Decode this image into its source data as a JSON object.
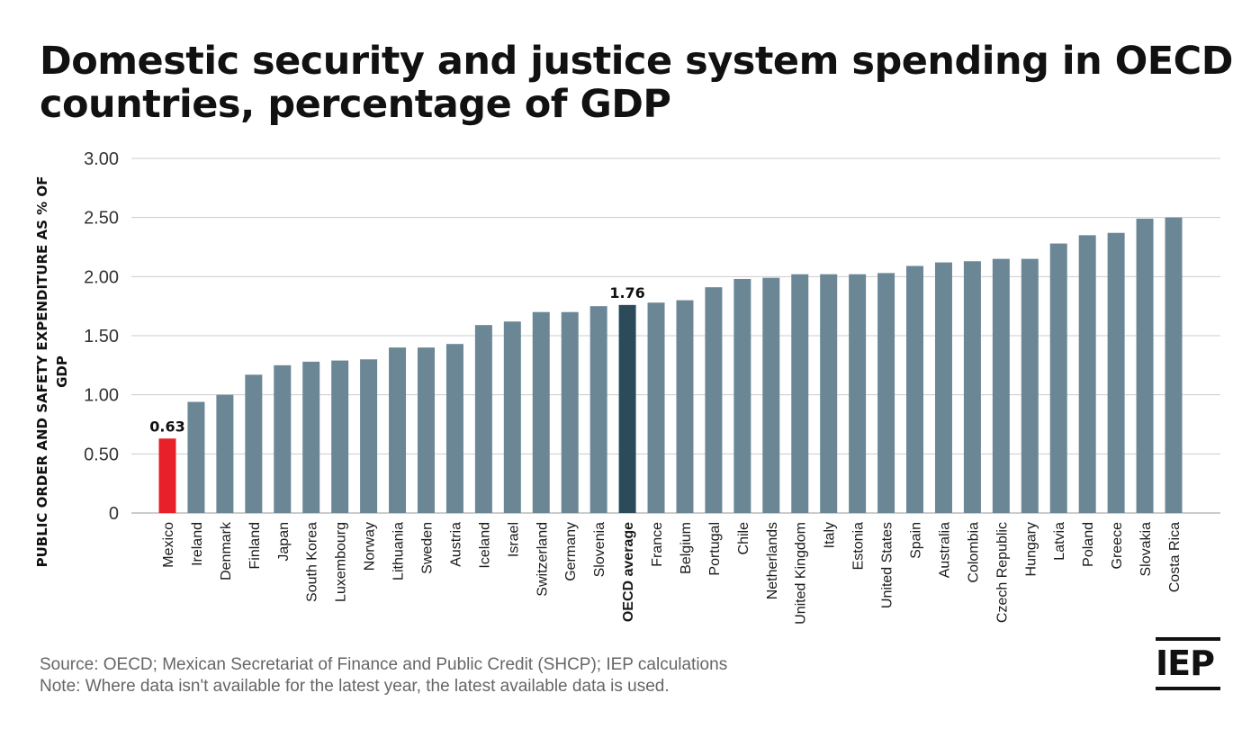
{
  "title": "Domestic security and justice system spending in OECD countries, percentage of GDP",
  "footer": {
    "source": "Source: OECD; Mexican Secretariat of Finance and Public Credit (SHCP); IEP calculations",
    "note": "Note: Where data isn't available for the latest year, the latest available data is used."
  },
  "logo": {
    "text": "IEP"
  },
  "colors": {
    "default_bar": "#6b8796",
    "highlight_bar": "#e8202a",
    "average_bar": "#2c4b5a",
    "grid": "#cccccc",
    "text": "#1a1a1a"
  },
  "chart_data": {
    "type": "bar",
    "ylabel": "PUBLIC ORDER AND SAFETY EXPENDITURE AS % OF GDP",
    "xlabel": "",
    "ylim": [
      0,
      3
    ],
    "yticks": [
      "0",
      "0.50",
      "1.00",
      "1.50",
      "2.00",
      "2.50",
      "3.00"
    ],
    "grid": true,
    "categories": [
      "Mexico",
      "Ireland",
      "Denmark",
      "Finland",
      "Japan",
      "South Korea",
      "Luxembourg",
      "Norway",
      "Lithuania",
      "Sweden",
      "Austria",
      "Iceland",
      "Israel",
      "Switzerland",
      "Germany",
      "Slovenia",
      "OECD average",
      "France",
      "Belgium",
      "Portugal",
      "Chile",
      "Netherlands",
      "United Kingdom",
      "Italy",
      "Estonia",
      "United States",
      "Spain",
      "Australia",
      "Colombia",
      "Czech Republic",
      "Hungary",
      "Latvia",
      "Poland",
      "Greece",
      "Slovakia",
      "Costa Rica"
    ],
    "values": [
      0.63,
      0.94,
      1.0,
      1.17,
      1.25,
      1.28,
      1.29,
      1.3,
      1.4,
      1.4,
      1.43,
      1.59,
      1.62,
      1.7,
      1.7,
      1.75,
      1.76,
      1.78,
      1.8,
      1.91,
      1.98,
      1.99,
      2.02,
      2.02,
      2.02,
      2.03,
      2.09,
      2.12,
      2.13,
      2.15,
      2.15,
      2.28,
      2.35,
      2.37,
      2.49,
      2.5
    ],
    "highlight": {
      "Mexico": "highlight",
      "OECD average": "average"
    },
    "data_labels": [
      {
        "category": "Mexico",
        "text": "0.63"
      },
      {
        "category": "OECD average",
        "text": "1.76"
      }
    ]
  }
}
